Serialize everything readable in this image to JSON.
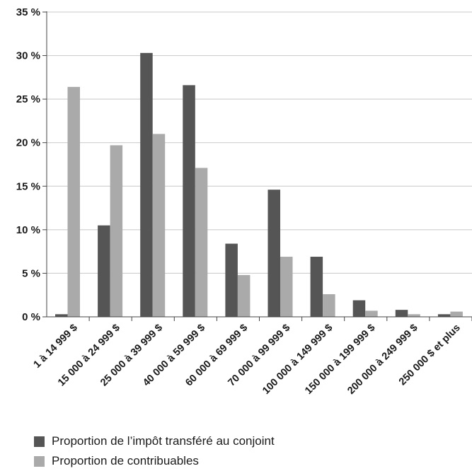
{
  "chart_data": {
    "type": "bar",
    "categories": [
      "1 à 14 999 $",
      "15 000 à 24 999 $",
      "25 000 à 39 999 $",
      "40 000 à 59 999 $",
      "60 000 à 69 999 $",
      "70 000 à 99 999 $",
      "100 000 à 149 999 $",
      "150 000 à 199 999 $",
      "200 000 à 249 999 $",
      "250 000 $ et plus"
    ],
    "series": [
      {
        "name": "Proportion de l’impôt transféré au conjoint",
        "color": "#555555",
        "values": [
          0.3,
          10.5,
          30.3,
          26.6,
          8.4,
          14.6,
          6.9,
          1.9,
          0.8,
          0.3
        ]
      },
      {
        "name": "Proportion de contribuables",
        "color": "#aaaaaa",
        "values": [
          26.4,
          19.7,
          21.0,
          17.1,
          4.8,
          6.9,
          2.6,
          0.7,
          0.3,
          0.6
        ]
      }
    ],
    "yticks": [
      "0 %",
      "5 %",
      "10 %",
      "15 %",
      "20 %",
      "25 %",
      "30 %",
      "35 %"
    ],
    "ylim": [
      0,
      35
    ],
    "grid": true,
    "legend": "bottom-left",
    "title": "",
    "xlabel": "",
    "ylabel": ""
  }
}
